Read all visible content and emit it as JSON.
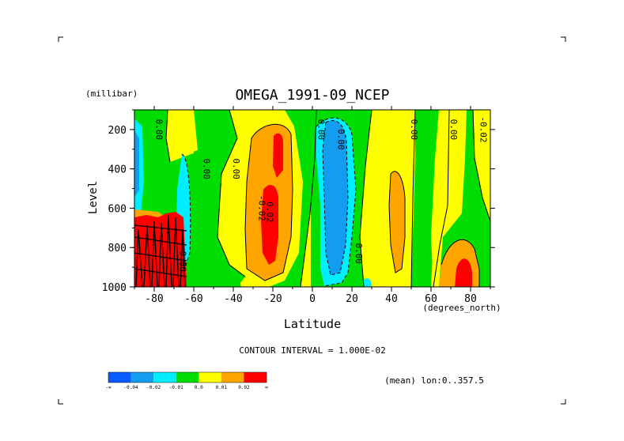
{
  "chart_data": {
    "type": "heatmap",
    "title": "OMEGA_1991-09_NCEP",
    "xlabel": "Latitude",
    "ylabel": "Level",
    "x_unit": "(degrees_north)",
    "y_unit": "(millibar)",
    "x_ticks": [
      -80,
      -60,
      -40,
      -20,
      0,
      20,
      40,
      60,
      80
    ],
    "x_tick_labels": [
      "-80",
      "-60",
      "-40",
      "-20",
      "0",
      "20",
      "40",
      "60",
      "80"
    ],
    "y_ticks": [
      200,
      400,
      600,
      800,
      1000
    ],
    "y_tick_labels": [
      "200",
      "400",
      "600",
      "800",
      "1000"
    ],
    "xlim": [
      -90,
      90
    ],
    "ylim": [
      1000,
      100
    ],
    "contour_interval_text": "CONTOUR INTERVAL = 1.000E-02",
    "footer_text": "(mean) lon:0..357.5",
    "contour_labels": [
      "0.00",
      "0.00",
      "0.00",
      "0.02",
      "-0.02",
      "0.00",
      "0.00",
      "0.00",
      "0.00",
      "0.00",
      "-0.02",
      "0.00"
    ],
    "colorbar": {
      "colors": [
        "#0a5bff",
        "#139df0",
        "#00eeff",
        "#00dd00",
        "#ffff00",
        "#ffa500",
        "#ff0000"
      ],
      "labels": [
        "-∞",
        "-0.04",
        "-0.02",
        "-0.01",
        "0.0",
        "0.01",
        "0.02",
        "∞"
      ]
    },
    "regions": [
      {
        "value_class": "0.0 to 0.01",
        "color": "#ffff00",
        "description": "background"
      },
      {
        "value_class": "0.01 to 0.02",
        "color": "#ffa500",
        "lat_range": [
          -30,
          -12
        ],
        "level_range": [
          150,
          960
        ]
      },
      {
        "value_class": "> 0.02",
        "color": "#ff0000",
        "lat_range": [
          -27,
          -16
        ],
        "level_range": [
          180,
          880
        ]
      },
      {
        "value_class": "-0.02 to -0.01",
        "color": "#00eeff",
        "lat_range": [
          2,
          22
        ],
        "level_range": [
          110,
          960
        ]
      },
      {
        "value_class": "-0.04 to -0.02",
        "color": "#139df0",
        "lat_range": [
          6,
          18
        ],
        "level_range": [
          140,
          920
        ]
      },
      {
        "value_class": "> 0.02",
        "color": "#ff0000",
        "lat_range": [
          -90,
          -64
        ],
        "level_range": [
          650,
          1000
        ]
      },
      {
        "value_class": "> 0.02",
        "color": "#ff0000",
        "lat_range": [
          71,
          81
        ],
        "level_range": [
          820,
          1000
        ]
      }
    ]
  }
}
